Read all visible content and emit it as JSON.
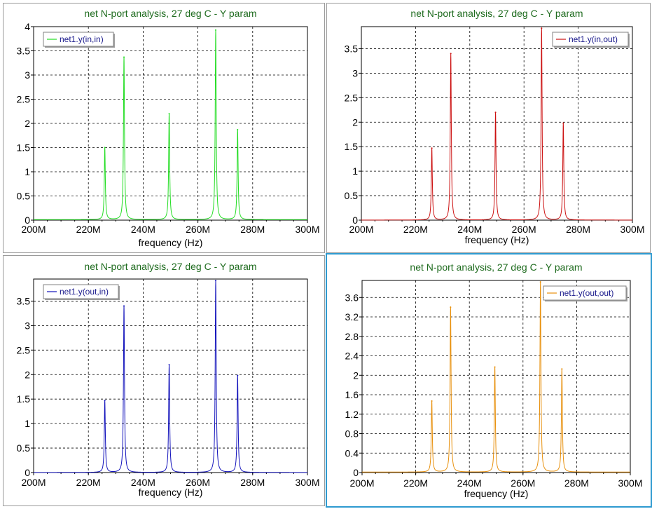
{
  "chart_data": [
    {
      "type": "line",
      "title": "net N-port analysis, 27 deg C - Y param",
      "xlabel": "frequency (Hz)",
      "ylabel": "",
      "xlim": [
        200,
        300
      ],
      "ylim": [
        0,
        4
      ],
      "x_unit": "MHz",
      "x_ticks": [
        "200M",
        "220M",
        "240M",
        "260M",
        "280M",
        "300M"
      ],
      "y_ticks": [
        "0",
        "0.5",
        "1",
        "1.5",
        "2",
        "2.5",
        "3",
        "3.5",
        "4"
      ],
      "grid": true,
      "legend": "top-left",
      "series": [
        {
          "name": "net1.y(in,in)",
          "color": "#22dd22",
          "baseline": 0.01,
          "peaks": [
            {
              "x": 226,
              "y": 1.5
            },
            {
              "x": 233,
              "y": 3.37
            },
            {
              "x": 249.5,
              "y": 2.2
            },
            {
              "x": 266.5,
              "y": 3.93
            },
            {
              "x": 274.5,
              "y": 1.87
            }
          ]
        }
      ]
    },
    {
      "type": "line",
      "title": "net N-port analysis, 27 deg C - Y param",
      "xlabel": "frequency (Hz)",
      "ylabel": "",
      "xlim": [
        200,
        300
      ],
      "ylim": [
        0,
        3.95
      ],
      "x_unit": "MHz",
      "x_ticks": [
        "200M",
        "220M",
        "240M",
        "260M",
        "280M",
        "300M"
      ],
      "y_ticks": [
        "0",
        "0.5",
        "1",
        "1.5",
        "2",
        "2.5",
        "3",
        "3.5"
      ],
      "grid": true,
      "legend": "top-right",
      "series": [
        {
          "name": "net1.y(in,out)",
          "color": "#cc1111",
          "baseline": 0.002,
          "peaks": [
            {
              "x": 226,
              "y": 1.47
            },
            {
              "x": 233,
              "y": 3.4
            },
            {
              "x": 249.5,
              "y": 2.2
            },
            {
              "x": 266.5,
              "y": 3.92
            },
            {
              "x": 274.5,
              "y": 1.98
            }
          ]
        }
      ]
    },
    {
      "type": "line",
      "title": "net N-port analysis, 27 deg C - Y param",
      "xlabel": "frequency (Hz)",
      "ylabel": "",
      "xlim": [
        200,
        300
      ],
      "ylim": [
        0,
        3.95
      ],
      "x_unit": "MHz",
      "x_ticks": [
        "200M",
        "220M",
        "240M",
        "260M",
        "280M",
        "300M"
      ],
      "y_ticks": [
        "0",
        "0.5",
        "1",
        "1.5",
        "2",
        "2.5",
        "3",
        "3.5"
      ],
      "grid": true,
      "legend": "top-left",
      "series": [
        {
          "name": "net1.y(out,in)",
          "color": "#1111bb",
          "baseline": 0.002,
          "peaks": [
            {
              "x": 226,
              "y": 1.47
            },
            {
              "x": 233,
              "y": 3.4
            },
            {
              "x": 249.5,
              "y": 2.2
            },
            {
              "x": 266.5,
              "y": 3.92
            },
            {
              "x": 274.5,
              "y": 1.98
            }
          ]
        }
      ]
    },
    {
      "type": "line",
      "title": "net N-port analysis, 27 deg C - Y param",
      "xlabel": "frequency (Hz)",
      "ylabel": "",
      "xlim": [
        200,
        300
      ],
      "ylim": [
        0,
        3.95
      ],
      "x_unit": "MHz",
      "x_ticks": [
        "200M",
        "220M",
        "240M",
        "260M",
        "280M",
        "300M"
      ],
      "y_ticks": [
        "0",
        "0.4",
        "0.8",
        "1.2",
        "1.6",
        "2",
        "2.4",
        "2.8",
        "3.2",
        "3.6"
      ],
      "grid": true,
      "legend": "top-right",
      "series": [
        {
          "name": "net1.y(out,out)",
          "color": "#e8900c",
          "baseline": 0.01,
          "peaks": [
            {
              "x": 226,
              "y": 1.47
            },
            {
              "x": 233,
              "y": 3.4
            },
            {
              "x": 249.5,
              "y": 2.17
            },
            {
              "x": 266.5,
              "y": 3.92
            },
            {
              "x": 274.5,
              "y": 2.13
            }
          ]
        }
      ]
    }
  ]
}
